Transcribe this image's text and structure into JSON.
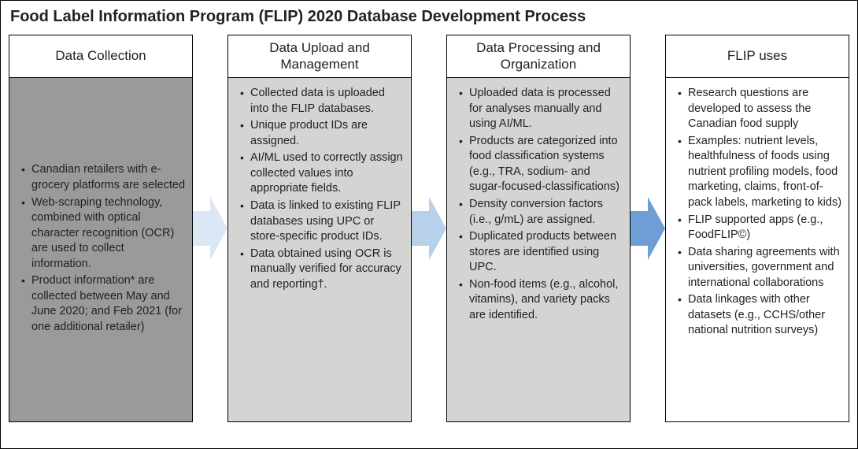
{
  "title": "Food Label Information Program (FLIP) 2020 Database Development Process",
  "arrow_colors": [
    "#dbe7f5",
    "#b8d0ea",
    "#6f9ed6"
  ],
  "stages": [
    {
      "header": "Data Collection",
      "body_bg": "#9b9a99",
      "body_justify": "center",
      "bullets": [
        "Canadian retailers with e-grocery platforms are selected",
        "Web-scraping technology, combined with optical character recognition (OCR) are used to collect information.",
        "Product information* are collected between May and June 2020; and Feb 2021 (for one additional retailer)"
      ]
    },
    {
      "header": "Data Upload and Management",
      "body_bg": "#d4d4d3",
      "body_justify": "flex-start",
      "bullets": [
        "Collected data is uploaded into the FLIP databases.",
        "Unique product IDs are assigned.",
        "AI/ML used to correctly assign collected values into appropriate fields.",
        "Data is linked to existing FLIP databases using UPC or store-specific product IDs.",
        "Data obtained using OCR is manually verified for accuracy and reporting†."
      ]
    },
    {
      "header": "Data Processing and Organization",
      "body_bg": "#d4d4d3",
      "body_justify": "flex-start",
      "bullets": [
        "Uploaded data is processed for analyses manually and using AI/ML.",
        "Products are categorized into food classification systems (e.g., TRA, sodium- and sugar-focused-classifications)",
        "Density conversion factors (i.e., g/mL) are assigned.",
        "Duplicated products between stores are identified using UPC.",
        "Non-food items (e.g., alcohol, vitamins), and variety packs are identified."
      ]
    },
    {
      "header": "FLIP uses",
      "body_bg": "#ffffff",
      "body_justify": "flex-start",
      "bullets": [
        "Research questions are developed to assess the Canadian food supply",
        "Examples: nutrient levels, healthfulness of foods using nutrient profiling models, food marketing, claims, front-of-pack labels, marketing to kids)",
        "FLIP supported apps (e.g., FoodFLIP©)",
        "Data sharing agreements with universities, government and international collaborations",
        "Data linkages with other datasets (e.g., CCHS/other national nutrition surveys)"
      ]
    }
  ]
}
